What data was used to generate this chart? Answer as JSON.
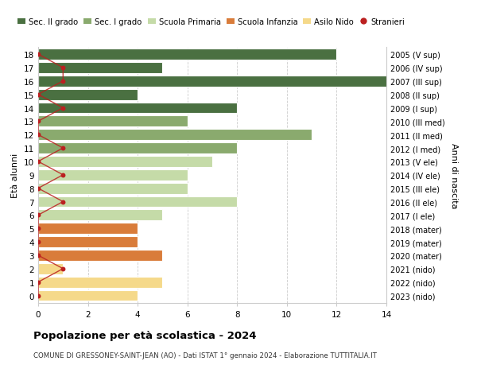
{
  "ages": [
    18,
    17,
    16,
    15,
    14,
    13,
    12,
    11,
    10,
    9,
    8,
    7,
    6,
    5,
    4,
    3,
    2,
    1,
    0
  ],
  "right_labels": [
    "2005 (V sup)",
    "2006 (IV sup)",
    "2007 (III sup)",
    "2008 (II sup)",
    "2009 (I sup)",
    "2010 (III med)",
    "2011 (II med)",
    "2012 (I med)",
    "2013 (V ele)",
    "2014 (IV ele)",
    "2015 (III ele)",
    "2016 (II ele)",
    "2017 (I ele)",
    "2018 (mater)",
    "2019 (mater)",
    "2020 (mater)",
    "2021 (nido)",
    "2022 (nido)",
    "2023 (nido)"
  ],
  "bar_values": [
    12,
    5,
    15,
    4,
    8,
    6,
    11,
    8,
    7,
    6,
    6,
    8,
    5,
    4,
    4,
    5,
    1,
    5,
    4
  ],
  "bar_colors": [
    "#4a7041",
    "#4a7041",
    "#4a7041",
    "#4a7041",
    "#4a7041",
    "#8aaa6e",
    "#8aaa6e",
    "#8aaa6e",
    "#c5dba8",
    "#c5dba8",
    "#c5dba8",
    "#c5dba8",
    "#c5dba8",
    "#d97c3a",
    "#d97c3a",
    "#d97c3a",
    "#f5d98a",
    "#f5d98a",
    "#f5d98a"
  ],
  "stranieri_values": [
    0,
    1,
    1,
    0,
    1,
    0,
    0,
    1,
    0,
    1,
    0,
    1,
    0,
    0,
    0,
    0,
    1,
    0,
    0
  ],
  "legend_labels": [
    "Sec. II grado",
    "Sec. I grado",
    "Scuola Primaria",
    "Scuola Infanzia",
    "Asilo Nido",
    "Stranieri"
  ],
  "legend_colors": [
    "#4a7041",
    "#8aaa6e",
    "#c5dba8",
    "#d97c3a",
    "#f5d98a",
    "#bb2020"
  ],
  "title_bold": "Popolazione per età scolastica - 2024",
  "subtitle": "COMUNE DI GRESSONEY-SAINT-JEAN (AO) - Dati ISTAT 1° gennaio 2024 - Elaborazione TUTTITALIA.IT",
  "ylabel_left": "Età alunni",
  "ylabel_right": "Anni di nascita",
  "xlim": [
    0,
    14
  ],
  "xticks": [
    0,
    2,
    4,
    6,
    8,
    10,
    12,
    14
  ],
  "background_color": "#ffffff",
  "grid_color": "#cccccc"
}
